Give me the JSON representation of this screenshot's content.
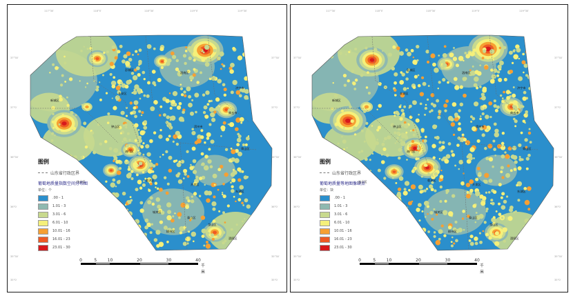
{
  "maps": [
    {
      "id": "left",
      "legend": {
        "title": "图例",
        "boundary_label": "山东省行政区界",
        "subtitle": "葡萄地质量指数空间分布图",
        "unit": "单位：个",
        "classes": [
          {
            "range": ".00 - 1",
            "color": "#2b8fcc"
          },
          {
            "range": "1.01 - 3",
            "color": "#8fb9b0"
          },
          {
            "range": "3.01 - 6",
            "color": "#c8d98e"
          },
          {
            "range": "6.01 - 10",
            "color": "#f5f07a"
          },
          {
            "range": "10.01 - 16",
            "color": "#f6a033"
          },
          {
            "range": "16.01 - 23",
            "color": "#ee5a24"
          },
          {
            "range": "23.01 - 30",
            "color": "#d7191c"
          }
        ]
      },
      "scale": {
        "ticks": [
          "0",
          "5",
          "10",
          "20",
          "30",
          "40"
        ],
        "unit": "千米"
      },
      "places": [
        "彭城区",
        "泗南区",
        "长安区",
        "济宁市",
        "新城区",
        "商丘市",
        "滨州市",
        "钟山区",
        "青山区",
        "临沭区",
        "开发区",
        "东湖区",
        "城关区",
        "泰山区",
        "龙山区",
        "柳州区",
        "泗阳区",
        "连云区",
        "海门区"
      ]
    },
    {
      "id": "right",
      "legend": {
        "title": "图例",
        "boundary_label": "山东省行政区界",
        "subtitle": "葡萄地质量等地图像缺点",
        "unit": "单位：块",
        "classes": [
          {
            "range": ".00 - 1",
            "color": "#2b8fcc"
          },
          {
            "range": "1.01 - 3",
            "color": "#8fb9b0"
          },
          {
            "range": "3.01 - 6",
            "color": "#c8d98e"
          },
          {
            "range": "6.01 - 10",
            "color": "#f5f07a"
          },
          {
            "range": "10.01 - 16",
            "color": "#f6a033"
          },
          {
            "range": "16.01 - 23",
            "color": "#ee5a24"
          },
          {
            "range": "23.01 - 30",
            "color": "#d7191c"
          }
        ]
      },
      "scale": {
        "ticks": [
          "0",
          "5",
          "10",
          "20",
          "30",
          "40"
        ],
        "unit": "千米"
      },
      "places": [
        "彭城区",
        "泗南区",
        "长安区",
        "济宁市",
        "新城区",
        "商丘市",
        "滨州市",
        "钟山区",
        "青山区",
        "临沭区",
        "开发区",
        "东湖区",
        "城关区",
        "泰山区",
        "龙山区",
        "柳州区",
        "泗阳区",
        "连云区",
        "海门区"
      ]
    }
  ],
  "coords": {
    "top": [
      "117°30′",
      "118°0′",
      "118°30′",
      "119°0′",
      "119°30′"
    ],
    "side": [
      "37°30′",
      "37°0′",
      "36°30′",
      "36°0′",
      "35°30′",
      "35°0′"
    ]
  },
  "colors": {
    "base": "#2b8fcc",
    "low": "#8fb9b0",
    "mid": "#c8d98e",
    "yellow": "#f5f07a",
    "orange": "#f6a033",
    "redorange": "#ee5a24",
    "red": "#d7191c"
  }
}
